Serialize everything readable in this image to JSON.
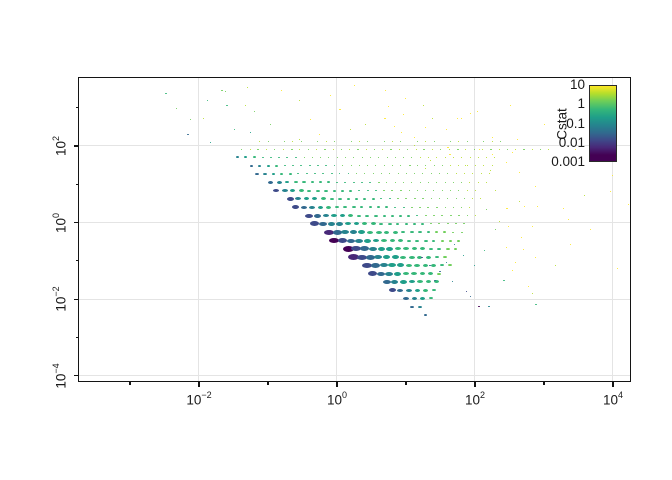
{
  "chart_data": {
    "type": "scatter",
    "title": "",
    "xlabel": "",
    "ylabel": "",
    "x_scale": "log10",
    "y_scale": "log10",
    "xlog_range": [
      -3.739,
      4.261
    ],
    "ylog_range": [
      -4.162,
      3.775
    ],
    "grid_on": true,
    "grid_color": "#e4e4e4",
    "axis_color": "#141414",
    "x_axis": {
      "major": [
        {
          "label_base": "10",
          "label_exp": "−2",
          "log": -2
        },
        {
          "label_base": "10",
          "label_exp": "0",
          "log": 0
        },
        {
          "label_base": "10",
          "label_exp": "2",
          "log": 2
        },
        {
          "label_base": "10",
          "label_exp": "4",
          "log": 4
        }
      ],
      "minor_logs": [
        -3,
        -1,
        1,
        3
      ]
    },
    "y_axis": {
      "major": [
        {
          "label_base": "10",
          "label_exp": "2",
          "log": 2
        },
        {
          "label_base": "10",
          "label_exp": "0",
          "log": 0
        },
        {
          "label_base": "10",
          "label_exp": "−2",
          "log": -2
        },
        {
          "label_base": "10",
          "label_exp": "−4",
          "log": -4
        }
      ],
      "minor_logs": [
        3,
        1,
        -1,
        -3
      ]
    },
    "palette": [
      "#440154",
      "#482878",
      "#3e4a89",
      "#31688e",
      "#26828e",
      "#1f9e89",
      "#35b779",
      "#6ece58",
      "#b5de2b",
      "#fde725"
    ],
    "lattice": {
      "dlogx": 0.1203,
      "rows": [
        {
          "logy": 2.13,
          "logx0": -1.12,
          "sizes": "110111011101110111011101110111",
          "colors": "878787878787878787878787878787"
        },
        {
          "logy": 1.92,
          "logx0": -1.38,
          "sizes": "11211121112111211121112111211121112111",
          "colors": "78787878787878787878787878787878787878"
        },
        {
          "logy": 1.7,
          "logx0": -1.44,
          "sizes": "33322222111111111111111111111111",
          "colors": "45666666777777777777778888888888"
        },
        {
          "logy": 1.48,
          "logx0": -1.24,
          "sizes": "333322222211111111111111111111",
          "colors": "345666666667777777777777888888"
        },
        {
          "logy": 1.27,
          "logx0": -1.16,
          "sizes": "44333222221111111111111111111",
          "colors": "34566666666677777777777788888"
        },
        {
          "logy": 1.05,
          "logx0": -0.96,
          "sizes": "554443332222221111111111111",
          "colors": "345666666666677777777777888"
        },
        {
          "logy": 0.83,
          "logx0": -0.88,
          "sizes": "6655444333222222111111111",
          "colors": "2456666666666777777777788"
        },
        {
          "logy": 0.62,
          "logx0": -0.68,
          "sizes": "765554433332222221111111",
          "colors": "245566666666677777777788"
        },
        {
          "logy": 0.4,
          "logx0": -0.6,
          "sizes": "7665544433332222221111",
          "colors": "2345666666666677777778"
        },
        {
          "logy": 0.18,
          "logx0": -0.4,
          "sizes": "876655444333322222211",
          "colors": "234556666666667777778"
        },
        {
          "logy": -0.03,
          "logx0": -0.32,
          "sizes": "9877655544333322222",
          "colors": "2344556666666677777"
        },
        {
          "logy": -0.25,
          "logx0": -0.12,
          "sizes": "a9877665544433322",
          "colors": "13445666666667777"
        },
        {
          "logy": -0.47,
          "logx0": -0.04,
          "sizes": "a988766554443333",
          "colors": "0234556666666777"
        },
        {
          "logy": -0.68,
          "logx0": 0.16,
          "sizes": "ba987766554443",
          "colors": "02345566666677"
        },
        {
          "logy": -0.9,
          "logx0": 0.24,
          "sizes": "ba9877665544",
          "colors": "123455666667"
        },
        {
          "logy": -1.12,
          "logx0": 0.44,
          "sizes": "a9887665544",
          "colors": "23455666667"
        },
        {
          "logy": -1.33,
          "logx0": 0.52,
          "sizes": "988766554",
          "colors": "234566667"
        },
        {
          "logy": -1.55,
          "logx0": 0.72,
          "sizes": "8776655",
          "colors": "3455666"
        },
        {
          "logy": -1.77,
          "logx0": 0.8,
          "sizes": "766554",
          "colors": "234566"
        },
        {
          "logy": -1.98,
          "logx0": 1.0,
          "sizes": "6554",
          "colors": "3456"
        },
        {
          "logy": -2.2,
          "logx0": 1.08,
          "sizes": "44",
          "colors": "34"
        },
        {
          "logy": -2.42,
          "logx0": 1.28,
          "sizes": "3",
          "colors": "3"
        }
      ]
    },
    "points": [
      [
        -2.48,
        3.36,
        2,
        6
      ],
      [
        -2.33,
        2.99,
        1,
        7
      ],
      [
        -2.16,
        2.31,
        2,
        3
      ],
      [
        -1.94,
        2.73,
        1,
        8
      ],
      [
        -1.87,
        3.2,
        1,
        6
      ],
      [
        -1.67,
        3.46,
        2,
        7
      ],
      [
        -1.59,
        3.07,
        2,
        6
      ],
      [
        -1.48,
        2.42,
        1,
        6
      ],
      [
        -1.32,
        3.07,
        1,
        8
      ],
      [
        -1.29,
        3.54,
        1,
        8
      ],
      [
        -1.26,
        2.34,
        1,
        5
      ],
      [
        -1.19,
        2.89,
        1,
        7
      ],
      [
        -0.97,
        2.55,
        1,
        7
      ],
      [
        -0.8,
        3.46,
        1,
        9
      ],
      [
        -0.54,
        3.2,
        1,
        8
      ],
      [
        -0.54,
        2.16,
        1,
        8
      ],
      [
        -0.39,
        2.68,
        1,
        9
      ],
      [
        -0.25,
        2.29,
        1,
        9
      ],
      [
        -0.1,
        3.33,
        1,
        9
      ],
      [
        0.04,
        2.94,
        2,
        9
      ],
      [
        0.19,
        2.42,
        1,
        8
      ],
      [
        0.26,
        3.59,
        1,
        9
      ],
      [
        0.41,
        2.55,
        1,
        8
      ],
      [
        0.7,
        3.44,
        1,
        9
      ],
      [
        0.7,
        2.73,
        2,
        9
      ],
      [
        0.74,
        3.02,
        1,
        9
      ],
      [
        0.84,
        2.52,
        1,
        9
      ],
      [
        0.94,
        2.34,
        1,
        9
      ],
      [
        0.96,
        2.81,
        1,
        9
      ],
      [
        0.99,
        3.25,
        1,
        9
      ],
      [
        1.06,
        1.5,
        1,
        7
      ],
      [
        1.13,
        2.23,
        1,
        9
      ],
      [
        1.13,
        2.0,
        1,
        8
      ],
      [
        1.25,
        3.07,
        1,
        8
      ],
      [
        1.28,
        2.47,
        1,
        9
      ],
      [
        1.28,
        1.4,
        1,
        8
      ],
      [
        1.35,
        1.63,
        1,
        8
      ],
      [
        1.39,
        2.71,
        1,
        8
      ],
      [
        1.59,
        2.44,
        1,
        9
      ],
      [
        1.61,
        1.95,
        2,
        9
      ],
      [
        1.64,
        1.77,
        2,
        9
      ],
      [
        1.74,
        2.73,
        1,
        9
      ],
      [
        1.81,
        2.73,
        1,
        9
      ],
      [
        1.86,
        1.5,
        1,
        8
      ],
      [
        1.93,
        2.86,
        1,
        9
      ],
      [
        2.04,
        2.89,
        1,
        9
      ],
      [
        2.07,
        1.9,
        1,
        9
      ],
      [
        2.22,
        1.37,
        1,
        8
      ],
      [
        2.25,
        1.77,
        1,
        9
      ],
      [
        2.26,
        2.21,
        1,
        9
      ],
      [
        2.46,
        1.58,
        1,
        9
      ],
      [
        2.51,
        3.07,
        1,
        9
      ],
      [
        2.61,
        2.16,
        1,
        9
      ],
      [
        3.01,
        2.55,
        1,
        9
      ],
      [
        3.23,
        2.94,
        1,
        9
      ],
      [
        3.45,
        1.9,
        1,
        9
      ],
      [
        -2.13,
        2.68,
        1,
        7
      ],
      [
        -1.84,
        2.08,
        1,
        5
      ],
      [
        -1.62,
        3.41,
        1,
        7
      ],
      [
        2.3,
        0.85,
        1,
        8
      ],
      [
        2.16,
        0.33,
        1,
        7
      ],
      [
        2.29,
        -0.19,
        1,
        7
      ],
      [
        2.14,
        -0.72,
        1,
        6
      ],
      [
        2.0,
        -1.11,
        1,
        5
      ],
      [
        2.36,
        0.02,
        1,
        8
      ],
      [
        2.42,
        -1.5,
        2,
        6
      ],
      [
        2.46,
        0.36,
        2,
        9
      ],
      [
        2.46,
        -0.64,
        1,
        9
      ],
      [
        2.49,
        -0.11,
        1,
        9
      ],
      [
        2.55,
        1.82,
        1,
        9
      ],
      [
        2.55,
        -1.24,
        1,
        9
      ],
      [
        2.59,
        -1.05,
        1,
        9
      ],
      [
        2.64,
        1.3,
        1,
        9
      ],
      [
        2.64,
        0.56,
        1,
        8
      ],
      [
        2.68,
        -0.38,
        1,
        9
      ],
      [
        2.71,
        -0.69,
        1,
        9
      ],
      [
        2.72,
        0.41,
        1,
        9
      ],
      [
        2.77,
        -1.66,
        1,
        9
      ],
      [
        2.83,
        -0.11,
        1,
        9
      ],
      [
        2.84,
        -1.86,
        1,
        8
      ],
      [
        2.87,
        0.93,
        1,
        9
      ],
      [
        2.87,
        -0.9,
        1,
        9
      ],
      [
        2.88,
        -2.15,
        2,
        6
      ],
      [
        2.9,
        0.41,
        1,
        9
      ],
      [
        3.16,
        -1.11,
        1,
        8
      ],
      [
        3.28,
        0.36,
        1,
        9
      ],
      [
        3.35,
        0.07,
        1,
        9
      ],
      [
        3.38,
        -0.58,
        1,
        9
      ],
      [
        3.59,
        0.72,
        1,
        8
      ],
      [
        3.67,
        -0.19,
        1,
        9
      ],
      [
        3.81,
        1.63,
        1,
        9
      ],
      [
        3.97,
        0.8,
        1,
        9
      ],
      [
        3.99,
        1.24,
        1,
        9
      ],
      [
        4.06,
        -1.19,
        1,
        9
      ],
      [
        4.22,
        0.46,
        1,
        9
      ],
      [
        1.23,
        -0.92,
        2,
        2
      ],
      [
        1.35,
        -1.11,
        2,
        3
      ],
      [
        1.42,
        -1.5,
        2,
        3
      ],
      [
        1.49,
        -1.29,
        2,
        3
      ],
      [
        1.59,
        -1.03,
        1,
        4
      ],
      [
        1.67,
        -1.55,
        1,
        4
      ],
      [
        1.71,
        -0.58,
        1,
        4
      ],
      [
        1.83,
        -0.85,
        1,
        5
      ],
      [
        1.87,
        -1.81,
        1,
        2
      ],
      [
        1.93,
        -1.94,
        1,
        3
      ],
      [
        2.06,
        -2.18,
        2,
        0
      ],
      [
        2.2,
        -2.2,
        2,
        4
      ]
    ],
    "legend": {
      "title": "Cstat",
      "tick_labels": [
        "10",
        "1",
        "0.1",
        "0.01",
        "0.001"
      ],
      "gradient_stops": [
        [
          "0%",
          "#fde725"
        ],
        [
          "10%",
          "#b5de2b"
        ],
        [
          "20%",
          "#6ece58"
        ],
        [
          "31%",
          "#35b779"
        ],
        [
          "42%",
          "#1f9e89"
        ],
        [
          "53%",
          "#26828e"
        ],
        [
          "63%",
          "#31688e"
        ],
        [
          "72%",
          "#3e4a89"
        ],
        [
          "82%",
          "#482878"
        ],
        [
          "92%",
          "#440154"
        ],
        [
          "100%",
          "#440154"
        ]
      ]
    }
  }
}
